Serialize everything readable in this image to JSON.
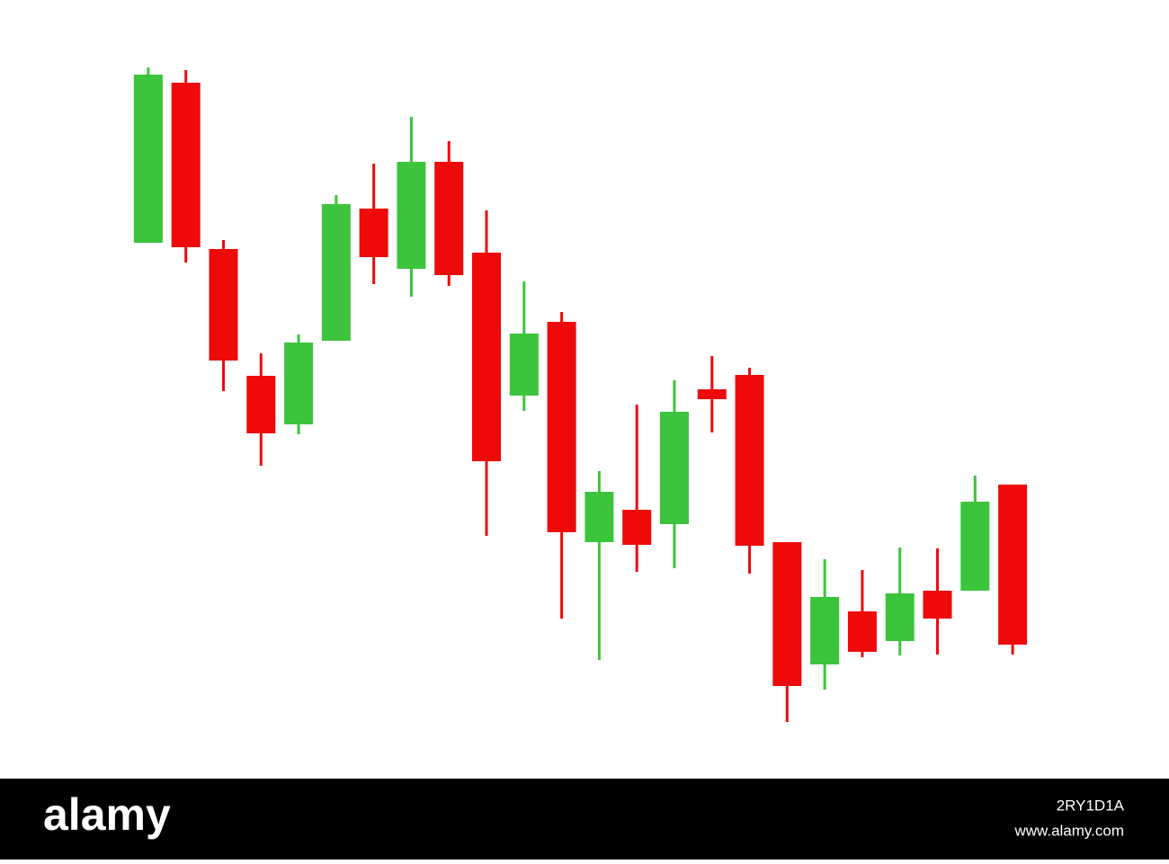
{
  "chart_data": {
    "type": "candlestick",
    "categories": [
      null,
      null,
      null,
      null,
      null,
      null,
      null,
      null,
      null,
      null,
      null,
      null,
      null,
      null,
      null,
      null,
      null,
      null,
      null,
      null,
      null,
      null,
      null,
      null
    ],
    "open": [
      600,
      778,
      593,
      452,
      398,
      491,
      638,
      571,
      690,
      589,
      430,
      512,
      267,
      303,
      287,
      437,
      453,
      267,
      131,
      190,
      157,
      213,
      213,
      331
    ],
    "high": [
      795,
      792,
      603,
      477,
      498,
      653,
      688,
      740,
      713,
      636,
      557,
      523,
      346,
      420,
      447,
      474,
      461,
      267,
      248,
      236,
      261,
      260,
      341,
      331
    ],
    "low": [
      600,
      578,
      435,
      352,
      387,
      491,
      554,
      540,
      552,
      274,
      413,
      182,
      136,
      234,
      238,
      389,
      232,
      67,
      103,
      139,
      141,
      142,
      213,
      142
    ],
    "close": [
      787,
      595,
      469,
      388,
      489,
      643,
      584,
      690,
      564,
      357,
      499,
      278,
      323,
      264,
      412,
      426,
      263,
      107,
      206,
      145,
      210,
      182,
      312,
      153
    ],
    "up_color": "#3cc43c",
    "down_color": "#ee0a0a",
    "ylim": [
      0,
      870
    ]
  },
  "footer": {
    "logo": "alamy",
    "image_id": "2RY1D1A",
    "url": "www.alamy.com"
  }
}
